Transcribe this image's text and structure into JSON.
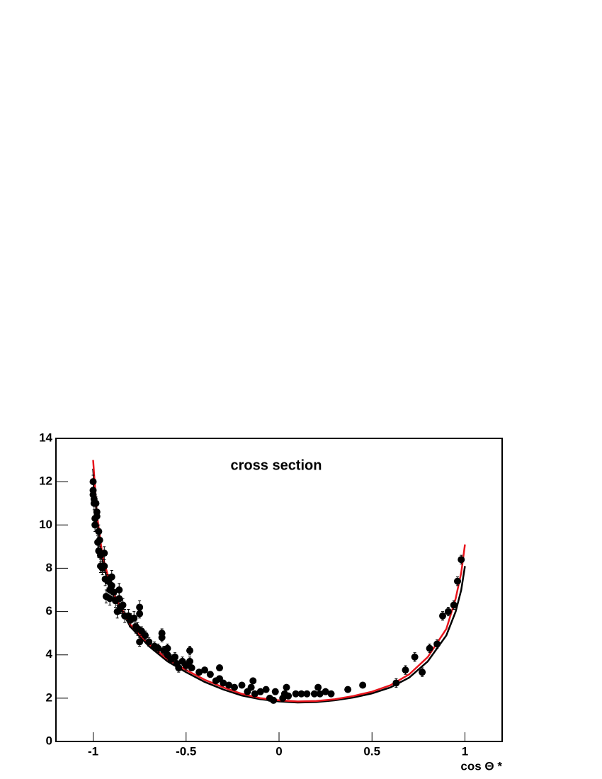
{
  "chart_data": {
    "type": "scatter",
    "title": "cross section",
    "x_label": "cos Θ *",
    "xlim": [
      -1.2,
      1.2
    ],
    "xticks": [
      -1,
      -0.5,
      0,
      0.5,
      1
    ],
    "ylim": [
      0,
      14
    ],
    "yticks": [
      0,
      2,
      4,
      6,
      8,
      10,
      12,
      14
    ],
    "series": [
      {
        "type": "scatter",
        "color": "#000000",
        "x": [
          -1,
          -1,
          -1,
          -0.995,
          -0.995,
          -0.99,
          -0.99,
          -0.985,
          -0.98,
          -0.98,
          -0.975,
          -0.97,
          -0.97,
          -0.965,
          -0.96,
          -0.96,
          -0.95,
          -0.94,
          -0.94,
          -0.935,
          -0.93,
          -0.92,
          -0.91,
          -0.91,
          -0.9,
          -0.9,
          -0.89,
          -0.88,
          -0.87,
          -0.86,
          -0.86,
          -0.85,
          -0.84,
          -0.83,
          -0.81,
          -0.8,
          -0.78,
          -0.77,
          -0.76,
          -0.75,
          -0.75,
          -0.74,
          -0.75,
          -0.72,
          -0.7,
          -0.67,
          -0.65,
          -0.63,
          -0.63,
          -0.62,
          -0.6,
          -0.6,
          -0.58,
          -0.56,
          -0.55,
          -0.54,
          -0.52,
          -0.5,
          -0.48,
          -0.48,
          -0.47,
          -0.43,
          -0.4,
          -0.37,
          -0.34,
          -0.32,
          -0.32,
          -0.3,
          -0.27,
          -0.24,
          -0.2,
          -0.17,
          -0.15,
          -0.14,
          -0.13,
          -0.1,
          -0.07,
          -0.05,
          -0.03,
          -0.02,
          0.02,
          0.03,
          0.04,
          0.05,
          0.09,
          0.12,
          0.15,
          0.19,
          0.21,
          0.22,
          0.25,
          0.28,
          0.37,
          0.45,
          0.63,
          0.68,
          0.73,
          0.77,
          0.81,
          0.85,
          0.88,
          0.91,
          0.94,
          0.96,
          0.98
        ],
        "values": [
          12,
          11.6,
          11.4,
          11.2,
          11,
          10.3,
          10,
          11,
          10.6,
          10.4,
          9.2,
          9.7,
          8.8,
          9.3,
          8.6,
          8.1,
          8,
          8.7,
          8.1,
          7.5,
          6.7,
          7.4,
          7,
          6.6,
          7.6,
          7.2,
          6.9,
          6.5,
          6,
          7,
          6.6,
          6.2,
          6.3,
          5.8,
          5.8,
          5.6,
          5.7,
          5.3,
          5.2,
          6.2,
          5.9,
          5.1,
          4.6,
          4.9,
          4.6,
          4.4,
          4.3,
          5,
          4.8,
          4.2,
          4.3,
          4,
          3.8,
          3.9,
          3.6,
          3.4,
          3.7,
          3.5,
          4.2,
          3.7,
          3.4,
          3.2,
          3.3,
          3.1,
          2.8,
          3.4,
          2.9,
          2.7,
          2.6,
          2.5,
          2.6,
          2.3,
          2.5,
          2.8,
          2.2,
          2.3,
          2.4,
          2,
          1.9,
          2.3,
          2,
          2.2,
          2.5,
          2.1,
          2.2,
          2.2,
          2.2,
          2.2,
          2.5,
          2.2,
          2.3,
          2.2,
          2.4,
          2.6,
          2.7,
          3.3,
          3.9,
          3.2,
          4.3,
          4.5,
          5.8,
          6,
          6.3,
          7.4,
          8.4
        ],
        "errors": [
          0.3,
          0.3,
          0.3,
          0.3,
          0.3,
          0.3,
          0.3,
          0.3,
          0.3,
          0.3,
          0.3,
          0.3,
          0.3,
          0.3,
          0.3,
          0.3,
          0.3,
          0.3,
          0.3,
          0.3,
          0.3,
          0.3,
          0.3,
          0.3,
          0.3,
          0.3,
          0.3,
          0.3,
          0.3,
          0.3,
          0.3,
          0.3,
          0.3,
          0.3,
          0.3,
          0.3,
          0.3,
          0.3,
          0.3,
          0.3,
          0.2,
          0.2,
          0.2,
          0.2,
          0.2,
          0.2,
          0.2,
          0.2,
          0.2,
          0.2,
          0.2,
          0.2,
          0.2,
          0.2,
          0.2,
          0.2,
          0.2,
          0.2,
          0.2,
          0.2,
          0.1,
          0.1,
          0.1,
          0.1,
          0.1,
          0.1,
          0.1,
          0.1,
          0.1,
          0.1,
          0.1,
          0.1,
          0.1,
          0.1,
          0.1,
          0.1,
          0.1,
          0.1,
          0.1,
          0.1,
          0.1,
          0.1,
          0.1,
          0.1,
          0.1,
          0.1,
          0.1,
          0.1,
          0.1,
          0.1,
          0.1,
          0.1,
          0.1,
          0.1,
          0.2,
          0.2,
          0.2,
          0.2,
          0.2,
          0.2,
          0.2,
          0.2,
          0.2,
          0.2,
          0.2
        ]
      },
      {
        "type": "line",
        "color": "#000000",
        "x": [
          -1,
          -0.98,
          -0.95,
          -0.9,
          -0.8,
          -0.7,
          -0.6,
          -0.5,
          -0.4,
          -0.3,
          -0.2,
          -0.1,
          0,
          0.1,
          0.2,
          0.3,
          0.4,
          0.5,
          0.6,
          0.7,
          0.8,
          0.9,
          0.95,
          0.98,
          1
        ],
        "values": [
          12.6,
          10.3,
          8.4,
          6.9,
          5.3,
          4.4,
          3.7,
          3.2,
          2.75,
          2.4,
          2.12,
          1.95,
          1.85,
          1.8,
          1.82,
          1.9,
          2.03,
          2.22,
          2.5,
          2.95,
          3.7,
          4.9,
          6,
          7,
          8.1
        ]
      },
      {
        "type": "line",
        "color": "#e8141c",
        "x": [
          -1,
          -0.98,
          -0.95,
          -0.9,
          -0.8,
          -0.7,
          -0.6,
          -0.5,
          -0.4,
          -0.3,
          -0.2,
          -0.1,
          0,
          0.1,
          0.2,
          0.3,
          0.4,
          0.5,
          0.6,
          0.7,
          0.8,
          0.9,
          0.95,
          0.98,
          1
        ],
        "values": [
          13,
          10.5,
          8.6,
          7,
          5.4,
          4.5,
          3.8,
          3.3,
          2.85,
          2.5,
          2.2,
          2,
          1.9,
          1.85,
          1.87,
          1.95,
          2.1,
          2.3,
          2.6,
          3.1,
          3.9,
          5.2,
          6.6,
          7.8,
          9.1
        ]
      }
    ]
  }
}
